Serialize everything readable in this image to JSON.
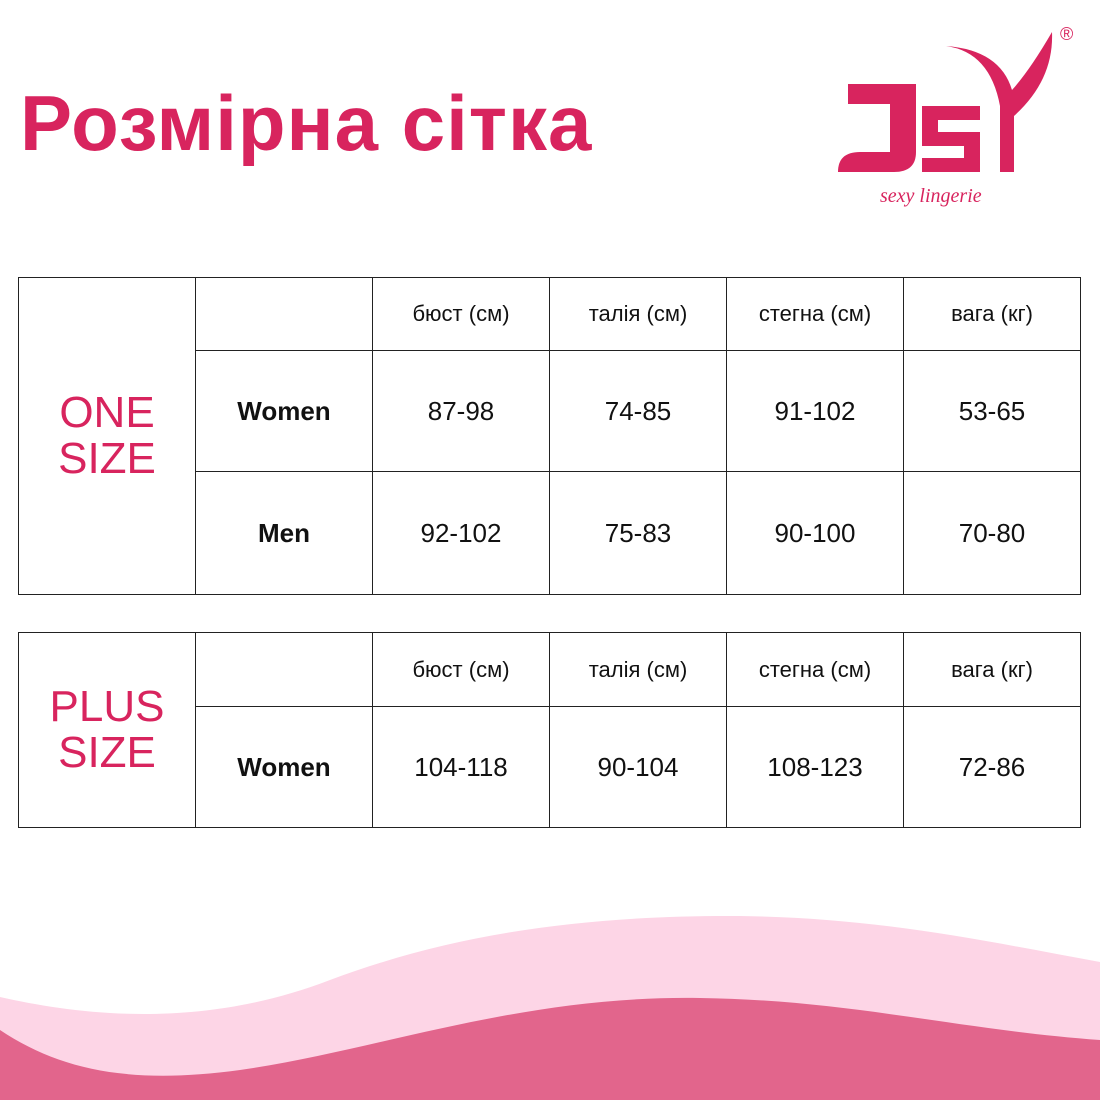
{
  "title": "Розмірна сітка",
  "logo": {
    "brand": "JSY",
    "tagline": "sexy lingerie",
    "registered": "®",
    "color": "#d8245e"
  },
  "colors": {
    "accent": "#d8245e",
    "wave_light": "#fdd5e6",
    "wave_dark": "#e2658c"
  },
  "one_size": {
    "label_line1": "ONE",
    "label_line2": "SIZE",
    "headers": [
      "бюст (см)",
      "талія (см)",
      "стегна (см)",
      "вага (кг)"
    ],
    "rows": [
      {
        "group": "Women",
        "values": [
          "87-98",
          "74-85",
          "91-102",
          "53-65"
        ]
      },
      {
        "group": "Men",
        "values": [
          "92-102",
          "75-83",
          "90-100",
          "70-80"
        ]
      }
    ]
  },
  "plus_size": {
    "label_line1": "PLUS",
    "label_line2": "SIZE",
    "headers": [
      "бюст (см)",
      "талія (см)",
      "стегна (см)",
      "вага (кг)"
    ],
    "rows": [
      {
        "group": "Women",
        "values": [
          "104-118",
          "90-104",
          "108-123",
          "72-86"
        ]
      }
    ]
  }
}
